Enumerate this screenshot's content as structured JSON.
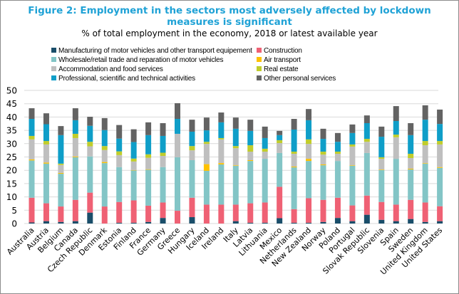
{
  "title_line1": "Figure 2: Employment in the sectors most adversely affected by lockdown",
  "title_line2": "measures is significant",
  "subtitle": "% of total employment in the economy, 2018 or latest available year",
  "chart_data": {
    "type": "bar",
    "stacked": true,
    "title": "Figure 2: Employment in the sectors most adversely affected by lockdown measures is significant",
    "subtitle": "% of total employment in the economy, 2018 or latest available year",
    "xlabel": "",
    "ylabel": "",
    "ylim": [
      0,
      50
    ],
    "yticks": [
      0,
      5,
      10,
      15,
      20,
      25,
      30,
      35,
      40,
      45,
      50
    ],
    "grid": true,
    "legend_position": "top",
    "categories": [
      "Australia",
      "Austria",
      "Belgium",
      "Canada",
      "Czech Republic",
      "Denmark",
      "Estonia",
      "Finland",
      "France",
      "Germany",
      "Greece",
      "Hungary",
      "Iceland",
      "Ireland",
      "Italy",
      "Latvia",
      "Lithuania",
      "Mexico",
      "Netherlands",
      "New Zealand",
      "Norway",
      "Poland",
      "Portugal",
      "Slovak Republic",
      "Slovenia",
      "Spain",
      "Sweden",
      "United Kingdom",
      "United States"
    ],
    "series": [
      {
        "name": "Manufacturing of motor vehicles and other transport equipement",
        "color": "#1a4e6a",
        "values": [
          0.4,
          0.9,
          0.6,
          0.9,
          4.1,
          0,
          0.3,
          0.3,
          0.6,
          2.1,
          0,
          2.4,
          0,
          0,
          0.9,
          0.3,
          0.3,
          2.0,
          0.3,
          0.3,
          0.6,
          2.1,
          0.9,
          3.3,
          1.4,
          0.9,
          1.7,
          0.6,
          0.9
        ]
      },
      {
        "name": "Construction",
        "color": "#ef6174",
        "values": [
          9.3,
          6.7,
          5.8,
          8.0,
          7.5,
          6.4,
          7.8,
          8.4,
          6.1,
          5.8,
          4.8,
          7.3,
          7.1,
          7.1,
          6.2,
          7.3,
          7.6,
          11.8,
          5.1,
          9.2,
          8.3,
          7.6,
          5.9,
          7.2,
          6.7,
          6.2,
          7.2,
          7.3,
          5.6
        ]
      },
      {
        "name": "Wholesale/retail trade and reparation of motor vehicles",
        "color": "#83c5c6",
        "values": [
          14.0,
          14.9,
          12.3,
          16.0,
          13.6,
          16.3,
          13.1,
          11.3,
          13.5,
          13.3,
          20.1,
          14.1,
          12.7,
          15.1,
          14.6,
          15.9,
          16.4,
          12.7,
          15.7,
          14.0,
          13.0,
          13.8,
          14.9,
          16.0,
          12.0,
          17.2,
          11.4,
          14.6,
          14.4
        ]
      },
      {
        "name": "Air transport",
        "color": "#fec100",
        "values": [
          0.4,
          0.4,
          0.3,
          0.3,
          0,
          0.4,
          0,
          0.1,
          0.2,
          0,
          0,
          0,
          2.5,
          0.5,
          0.2,
          0.3,
          0,
          0,
          0.3,
          0.8,
          0.3,
          0,
          0.2,
          0,
          0.2,
          0,
          0.3,
          0.2,
          0.3
        ]
      },
      {
        "name": "Accommodation and food services",
        "color": "#bfbfbf",
        "values": [
          7.5,
          6.8,
          3.0,
          6.9,
          3.8,
          4.5,
          4.5,
          3.2,
          4.3,
          4.2,
          8.8,
          3.7,
          7.6,
          8.9,
          6.4,
          3.2,
          2.7,
          3.7,
          4.8,
          5.6,
          3.7,
          2.7,
          7.0,
          4.2,
          4.0,
          8.1,
          4.0,
          6.7,
          8.5
        ]
      },
      {
        "name": "Real estate",
        "color": "#c1cd2b",
        "values": [
          1.3,
          1.3,
          0.5,
          1.6,
          1.7,
          1.5,
          1.4,
          1.1,
          1.3,
          1.2,
          0,
          1.6,
          0.8,
          0.5,
          0.8,
          2.4,
          1.1,
          1.1,
          0.8,
          1.7,
          1.1,
          0.8,
          0.8,
          1.1,
          0.6,
          1.0,
          1.6,
          1.6,
          1.3
        ]
      },
      {
        "name": "Professional, scientific and technical activities",
        "color": "#0f9ec8",
        "values": [
          6.4,
          6.3,
          10.7,
          5.1,
          6.0,
          6.0,
          4.8,
          6.2,
          7.2,
          6.3,
          5.6,
          5.4,
          4.3,
          5.9,
          6.5,
          5.4,
          4.0,
          1.9,
          8.3,
          7.2,
          4.8,
          3.7,
          4.3,
          5.9,
          7.7,
          5.1,
          7.0,
          8.0,
          6.4
        ]
      },
      {
        "name": "Other personal services",
        "color": "#636363",
        "values": [
          4.0,
          4.1,
          3.4,
          4.5,
          3.4,
          4.5,
          5.1,
          4.8,
          4.8,
          4.8,
          5.9,
          4.5,
          4.8,
          3.7,
          4.2,
          4.2,
          4.3,
          1.6,
          4.0,
          4.2,
          3.8,
          3.3,
          3.2,
          2.9,
          3.8,
          5.6,
          4.5,
          5.4,
          5.4
        ]
      }
    ]
  },
  "legend": [
    {
      "label": "Manufacturing of motor vehicles and other transport equipement",
      "color": "#1a4e6a"
    },
    {
      "label": "Construction",
      "color": "#ef6174"
    },
    {
      "label": "Wholesale/retail trade and reparation of motor vehicles",
      "color": "#83c5c6"
    },
    {
      "label": "Air transport",
      "color": "#fec100"
    },
    {
      "label": "Accommodation and food services",
      "color": "#bfbfbf"
    },
    {
      "label": "Real estate",
      "color": "#c1cd2b"
    },
    {
      "label": "Professional, scientific and technical activities",
      "color": "#0f9ec8"
    },
    {
      "label": "Other personal services",
      "color": "#636363"
    }
  ]
}
